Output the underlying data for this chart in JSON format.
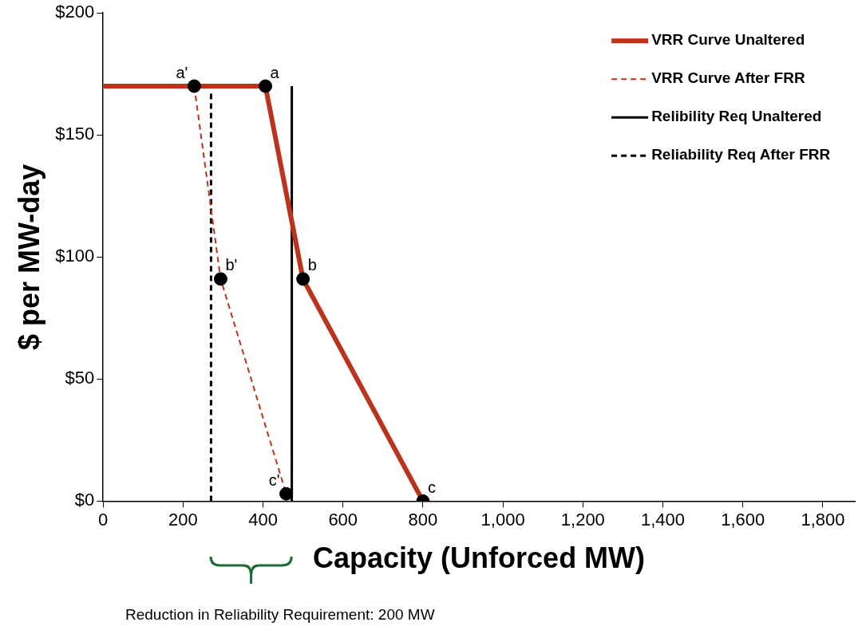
{
  "chart_data": {
    "type": "line",
    "xlabel": "Capacity (Unforced MW)",
    "ylabel": "$ per MW-day",
    "xlim": [
      0,
      1880
    ],
    "xticks": [
      0,
      200,
      400,
      600,
      800,
      {
        "value": 1000,
        "label": "1,000"
      },
      {
        "value": 1200,
        "label": "1,200"
      },
      {
        "value": 1400,
        "label": "1,400"
      },
      {
        "value": 1600,
        "label": "1,600"
      },
      {
        "value": 1800,
        "label": "1,800"
      }
    ],
    "ylim": [
      0,
      200
    ],
    "yticks": [
      {
        "value": 0,
        "label": "$0"
      },
      {
        "value": 50,
        "label": "$50"
      },
      {
        "value": 100,
        "label": "$100"
      },
      {
        "value": 150,
        "label": "$150"
      },
      {
        "value": 200,
        "label": "$200"
      }
    ],
    "grid": false,
    "legend": "top right",
    "series": [
      {
        "name": "VRR Curve Unaltered",
        "color": "#c0311a",
        "x": [
          0,
          406,
          500,
          800
        ],
        "values": [
          170,
          170,
          91,
          0
        ],
        "line_style": "solid"
      },
      {
        "name": "VRR Curve After FRR",
        "color": "#c0311a",
        "x": [
          228,
          294,
          458
        ],
        "values": [
          170,
          91,
          3
        ],
        "line_style": "dashed"
      },
      {
        "name": "Relibility Req Unaltered",
        "color": "#000000",
        "x": [
          472,
          472
        ],
        "values": [
          0,
          170
        ],
        "line_style": "solid"
      },
      {
        "name": "Reliability Req After FRR",
        "color": "#000000",
        "x": [
          270,
          270
        ],
        "values": [
          0,
          167
        ],
        "line_style": "dashed"
      },
      {
        "type": "scatter",
        "marker": "circle",
        "color": "#000000",
        "x": [
          228,
          406,
          294,
          500,
          458,
          800
        ],
        "values": [
          170,
          170,
          91,
          91,
          3,
          0
        ]
      }
    ],
    "annotations": [
      {
        "text": "a'",
        "x": 228,
        "y": 170
      },
      {
        "text": "a",
        "x": 406,
        "y": 170
      },
      {
        "text": "b'",
        "x": 294,
        "y": 91
      },
      {
        "text": "b",
        "x": 500,
        "y": 91
      },
      {
        "text": "c'",
        "x": 458,
        "y": 3
      },
      {
        "text": "c",
        "x": 800,
        "y": 0
      },
      "Reduction in Reliability Requirement: 200 MW"
    ]
  }
}
